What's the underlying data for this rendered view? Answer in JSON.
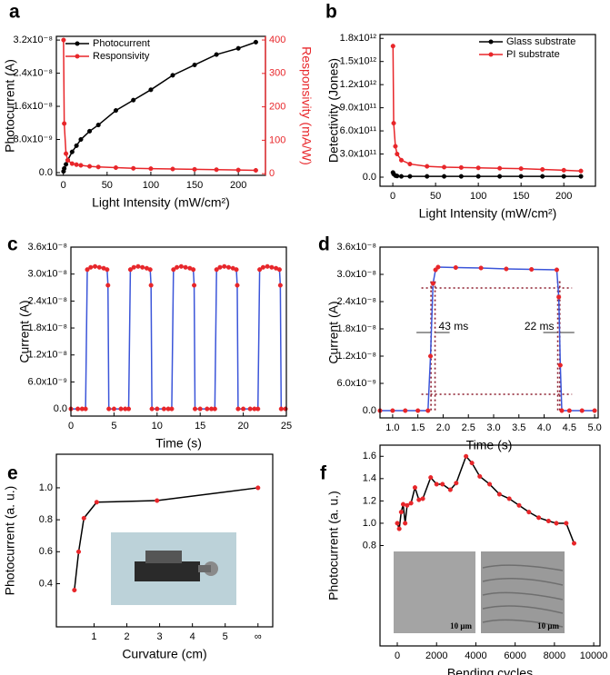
{
  "chart_data": [
    {
      "type": "line",
      "panel": "a",
      "xlabel": "Light Intensity (mW/cm²)",
      "ylabel": "Photocurrent (A)",
      "y2label": "Responsivity (mA/W)",
      "x": [
        0.2,
        1,
        3,
        5,
        10,
        15,
        20,
        30,
        40,
        60,
        80,
        100,
        125,
        150,
        175,
        200,
        220
      ],
      "series": [
        {
          "name": "Photocurrent",
          "color": "#000000",
          "values": [
            3e-10,
            1e-09,
            2e-09,
            3e-09,
            5e-09,
            6.5e-09,
            8e-09,
            1e-08,
            1.15e-08,
            1.5e-08,
            1.75e-08,
            2e-08,
            2.35e-08,
            2.6e-08,
            2.85e-08,
            3e-08,
            3.15e-08
          ]
        },
        {
          "name": "Responsivity",
          "color": "#e8262a",
          "axis": "y2",
          "values": [
            400,
            150,
            60,
            40,
            30,
            27,
            25,
            22,
            20,
            18,
            16,
            15,
            14,
            13,
            12,
            11,
            10
          ]
        }
      ],
      "xlim": [
        -8,
        231
      ],
      "xticks": [
        0,
        50,
        100,
        150,
        200
      ],
      "ylim": [
        -6.6e-10,
        3.29e-08
      ],
      "yticks": [
        {
          "value": 0,
          "label": "0.0"
        },
        {
          "value": 8e-09,
          "label": "8.0x10⁻⁹"
        },
        {
          "value": 1.6e-08,
          "label": "1.6x10⁻⁸"
        },
        {
          "value": 2.4e-08,
          "label": "2.4x10⁻⁸"
        },
        {
          "value": 3.2e-08,
          "label": "3.2x10⁻⁸"
        }
      ],
      "y2lim": [
        -5,
        411
      ],
      "y2ticks": [
        0,
        100,
        200,
        300,
        400
      ],
      "legend": "upper left"
    },
    {
      "type": "line",
      "panel": "b",
      "xlabel": "Light Intensity (mW/cm²)",
      "ylabel": "Detectivity (Jones)",
      "x": [
        0.2,
        1,
        3,
        5,
        10,
        20,
        40,
        60,
        80,
        100,
        125,
        150,
        175,
        200,
        220
      ],
      "series": [
        {
          "name": "Glass substrate",
          "color": "#000000",
          "values": [
            60000000000.0,
            40000000000.0,
            20000000000.0,
            15000000000.0,
            10000000000.0,
            10000000000.0,
            10000000000.0,
            10000000000.0,
            10000000000.0,
            10000000000.0,
            10000000000.0,
            10000000000.0,
            10000000000.0,
            10000000000.0,
            10000000000.0
          ]
        },
        {
          "name": "PI substrate",
          "color": "#e8262a",
          "values": [
            1700000000000.0,
            700000000000.0,
            400000000000.0,
            300000000000.0,
            220000000000.0,
            170000000000.0,
            140000000000.0,
            130000000000.0,
            125000000000.0,
            120000000000.0,
            115000000000.0,
            110000000000.0,
            100000000000.0,
            90000000000.0,
            80000000000.0
          ]
        }
      ],
      "xlim": [
        -15,
        237
      ],
      "xticks": [
        0,
        50,
        100,
        150,
        200
      ],
      "ylim": [
        -118000000000.0,
        1850000000000.0
      ],
      "yticks": [
        {
          "value": 0,
          "label": "0.0"
        },
        {
          "value": 300000000000.0,
          "label": "3.0x10¹¹"
        },
        {
          "value": 600000000000.0,
          "label": "6.0x10¹¹"
        },
        {
          "value": 900000000000.0,
          "label": "9.0x10¹¹"
        },
        {
          "value": 1200000000000.0,
          "label": "1.2x10¹²"
        },
        {
          "value": 1500000000000.0,
          "label": "1.5x10¹²"
        },
        {
          "value": 1800000000000.0,
          "label": "1.8x10¹²"
        }
      ],
      "legend": "upper right"
    },
    {
      "type": "line",
      "panel": "c",
      "xlabel": "Time (s)",
      "ylabel": "Current (A)",
      "x": [
        0,
        0.8,
        1.3,
        1.7,
        1.9,
        2.3,
        2.8,
        3.3,
        3.8,
        4.2,
        4.3,
        4.4,
        5,
        5.8,
        6.3,
        6.7,
        6.9,
        7.3,
        7.8,
        8.3,
        8.8,
        9.2,
        9.3,
        9.4,
        10,
        10.8,
        11.3,
        11.7,
        11.9,
        12.3,
        12.8,
        13.3,
        13.8,
        14.2,
        14.3,
        14.4,
        15,
        15.8,
        16.3,
        16.7,
        16.9,
        17.3,
        17.8,
        18.3,
        18.8,
        19.2,
        19.3,
        19.4,
        20,
        20.8,
        21.3,
        21.7,
        21.9,
        22.3,
        22.8,
        23.3,
        23.8,
        24.2,
        24.3,
        24.4,
        24.9
      ],
      "series": [
        {
          "color": "#3b55d9",
          "marker_color": "#e8262a",
          "values": [
            0,
            0,
            0,
            0,
            3.1e-08,
            3.15e-08,
            3.17e-08,
            3.15e-08,
            3.13e-08,
            3.1e-08,
            2.75e-08,
            0,
            0,
            0,
            0,
            0,
            3.1e-08,
            3.15e-08,
            3.17e-08,
            3.15e-08,
            3.13e-08,
            3.1e-08,
            2.75e-08,
            0,
            0,
            0,
            0,
            0,
            3.1e-08,
            3.15e-08,
            3.17e-08,
            3.15e-08,
            3.13e-08,
            3.1e-08,
            2.75e-08,
            0,
            0,
            0,
            0,
            0,
            3.1e-08,
            3.15e-08,
            3.17e-08,
            3.15e-08,
            3.13e-08,
            3.1e-08,
            2.75e-08,
            0,
            0,
            0,
            0,
            0,
            3.1e-08,
            3.15e-08,
            3.17e-08,
            3.15e-08,
            3.13e-08,
            3.1e-08,
            2.75e-08,
            0,
            0
          ]
        }
      ],
      "xlim": [
        0,
        25
      ],
      "xticks": [
        0,
        5,
        10,
        15,
        20,
        25
      ],
      "ylim": [
        -1.6e-09,
        3.6e-08
      ],
      "yticks": [
        {
          "value": 0,
          "label": "0.0"
        },
        {
          "value": 6e-09,
          "label": "6.0x10⁻⁹"
        },
        {
          "value": 1.2e-08,
          "label": "1.2x10⁻⁸"
        },
        {
          "value": 1.8e-08,
          "label": "1.8x10⁻⁸"
        },
        {
          "value": 2.4e-08,
          "label": "2.4x10⁻⁸"
        },
        {
          "value": 3e-08,
          "label": "3.0x10⁻⁸"
        },
        {
          "value": 3.6e-08,
          "label": "3.6x10⁻⁸"
        }
      ]
    },
    {
      "type": "line",
      "panel": "d",
      "xlabel": "Time (s)",
      "ylabel": "Current (A)",
      "x": [
        0.75,
        1.0,
        1.25,
        1.5,
        1.7,
        1.75,
        1.8,
        1.85,
        1.9,
        2.25,
        2.75,
        3.25,
        3.75,
        4.25,
        4.29,
        4.32,
        4.35,
        4.5,
        4.75,
        5.0
      ],
      "series": [
        {
          "color": "#3b55d9",
          "marker_color": "#e8262a",
          "values": [
            0,
            0,
            0,
            0,
            0,
            1.2e-08,
            2.8e-08,
            3.1e-08,
            3.16e-08,
            3.15e-08,
            3.14e-08,
            3.12e-08,
            3.11e-08,
            3.1e-08,
            2.5e-08,
            1e-08,
            0,
            0,
            0,
            0
          ]
        }
      ],
      "hlines": [
        3.6e-09,
        2.7e-08
      ],
      "vlines": [
        1.76,
        1.84,
        4.27,
        4.31
      ],
      "reference_color": "#8b1a2b",
      "annotations": [
        "43 ms",
        "22 ms"
      ],
      "xlim": [
        0.75,
        5.07
      ],
      "xticks": [
        {
          "value": 1,
          "label": "1.0"
        },
        1.5,
        {
          "value": 2,
          "label": "2.0"
        },
        2.5,
        {
          "value": 3,
          "label": "3.0"
        },
        3.5,
        {
          "value": 4,
          "label": "4.0"
        },
        4.5,
        {
          "value": 5,
          "label": "5.0"
        }
      ],
      "ylim": [
        -1.6e-09,
        3.6e-08
      ],
      "yticks": [
        {
          "value": 0,
          "label": "0.0"
        },
        {
          "value": 6e-09,
          "label": "6.0x10⁻⁹"
        },
        {
          "value": 1.2e-08,
          "label": "1.2x10⁻⁸"
        },
        {
          "value": 1.8e-08,
          "label": "1.8x10⁻⁸"
        },
        {
          "value": 2.4e-08,
          "label": "2.4x10⁻⁸"
        },
        {
          "value": 3e-08,
          "label": "3.0x10⁻⁸"
        },
        {
          "value": 3.6e-08,
          "label": "3.6x10⁻⁸"
        }
      ]
    },
    {
      "type": "line",
      "panel": "e",
      "xlabel": "Curvature (cm)",
      "ylabel": "Photocurrent (a. u.)",
      "x": [
        0.4,
        0.53,
        0.69,
        1.08,
        2.92,
        6
      ],
      "series": [
        {
          "color": "#000000",
          "marker_color": "#e8262a",
          "values": [
            0.36,
            0.6,
            0.81,
            0.91,
            0.92,
            1.0
          ]
        }
      ],
      "xlim": [
        -0.15,
        6.45
      ],
      "xticks": [
        1,
        2,
        3,
        4,
        5,
        {
          "value": 6,
          "label": "∞"
        }
      ],
      "ylim": [
        0.13,
        1.21
      ],
      "yticks": [
        0.4,
        0.6,
        0.8,
        {
          "value": 1,
          "label": "1.0"
        }
      ]
    },
    {
      "type": "line",
      "panel": "f",
      "xlabel": "Bending cycles",
      "ylabel": "Photocurrent (a. u.)",
      "x": [
        0,
        100,
        200,
        300,
        400,
        500,
        700,
        900,
        1100,
        1300,
        1700,
        2000,
        2300,
        2700,
        3000,
        3500,
        3800,
        4200,
        4700,
        5200,
        5700,
        6200,
        6700,
        7200,
        7700,
        8100,
        8600,
        9000
      ],
      "series": [
        {
          "color": "#000000",
          "marker_color": "#e8262a",
          "values": [
            1.0,
            0.95,
            1.1,
            1.17,
            1.0,
            1.16,
            1.18,
            1.32,
            1.21,
            1.22,
            1.41,
            1.35,
            1.35,
            1.3,
            1.36,
            1.6,
            1.54,
            1.42,
            1.35,
            1.26,
            1.22,
            1.16,
            1.1,
            1.05,
            1.02,
            1.0,
            1.0,
            0.82
          ]
        }
      ],
      "inset_labels": [
        "10 μm",
        "10 μm"
      ],
      "xlim": [
        -880,
        10320
      ],
      "xticks": [
        0,
        2000,
        4000,
        6000,
        8000,
        10000
      ],
      "ylim": [
        -0.1,
        1.7
      ],
      "yticks": [
        0.8,
        {
          "value": 1,
          "label": "1.0"
        },
        1.2,
        1.4,
        1.6
      ]
    }
  ]
}
